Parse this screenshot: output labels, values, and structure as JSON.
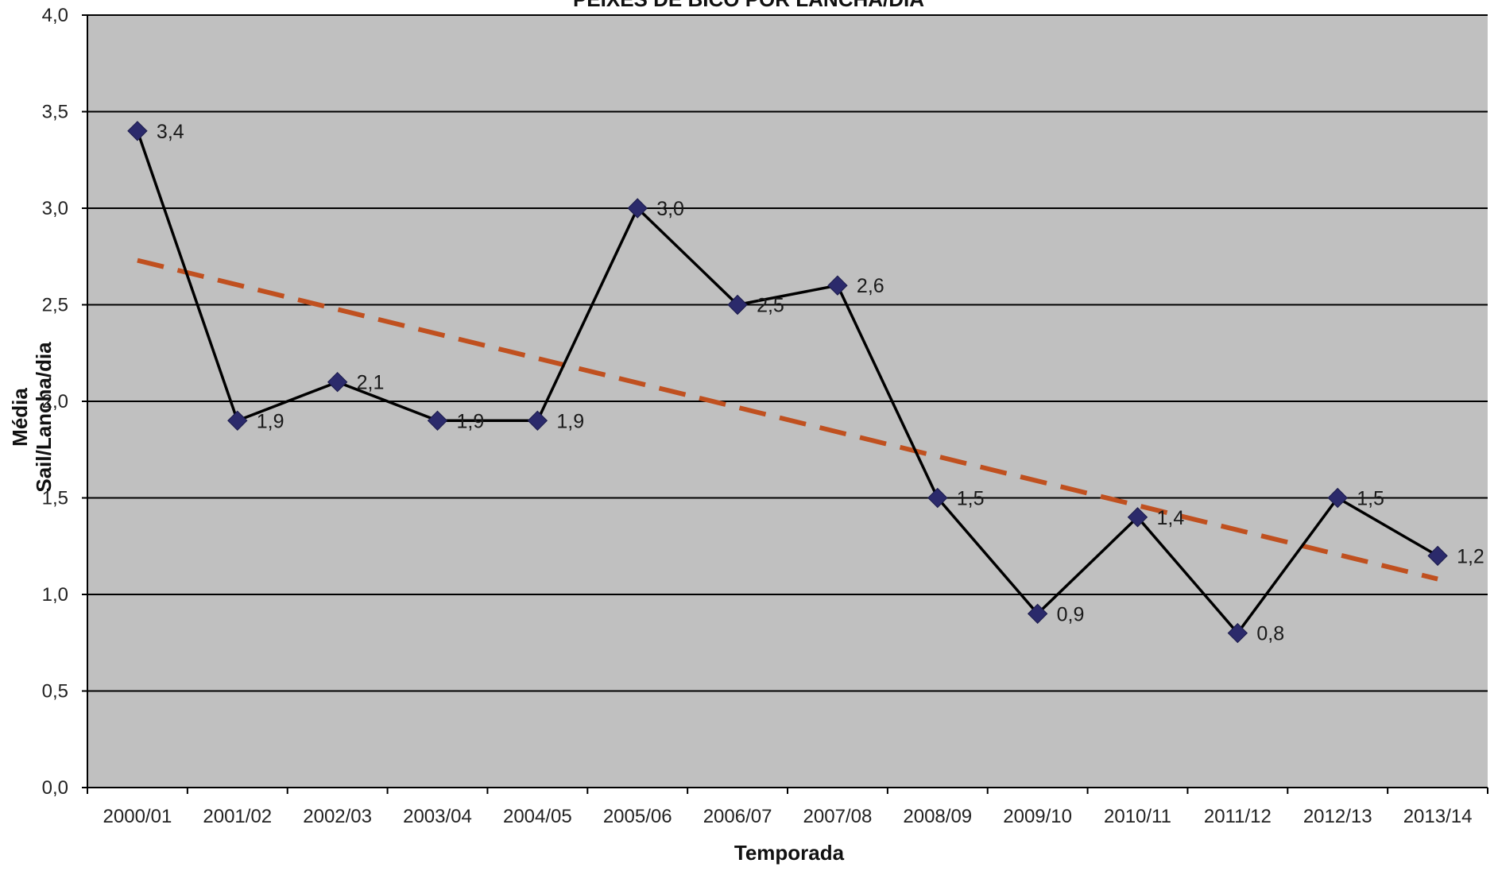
{
  "chart_data": {
    "type": "line",
    "title": "PEIXES  DE  BICO  POR  LANCHA/DIA",
    "xlabel": "Temporada",
    "ylabel_lines": [
      "Média",
      "Sail/Lancha/dia"
    ],
    "categories": [
      "2000/01",
      "2001/02",
      "2002/03",
      "2003/04",
      "2004/05",
      "2005/06",
      "2006/07",
      "2007/08",
      "2008/09",
      "2009/10",
      "2010/11",
      "2011/12",
      "2012/13",
      "2013/14"
    ],
    "series": [
      {
        "values": [
          3.4,
          1.9,
          2.1,
          1.9,
          1.9,
          3.0,
          2.5,
          2.6,
          1.5,
          0.9,
          1.4,
          0.8,
          1.5,
          1.2
        ],
        "labels": [
          "3,4",
          "1,9",
          "2,1",
          "1,9",
          "1,9",
          "3,0",
          "2,5",
          "2,6",
          "1,5",
          "0,9",
          "1,4",
          "0,8",
          "1,5",
          "1,2"
        ],
        "color": "#000000",
        "marker": "diamond",
        "marker_color": "#2b2a6b"
      }
    ],
    "trendline": {
      "type": "linear",
      "start": 2.73,
      "end": 1.08,
      "color": "#c0501f",
      "style": "dashed"
    },
    "ylim": [
      0,
      4
    ],
    "yticks": [
      "0,0",
      "0,5",
      "1,0",
      "1,5",
      "2,0",
      "2,5",
      "3,0",
      "3,5",
      "4,0"
    ],
    "grid": true,
    "legend": "none",
    "colors": {
      "plot_background": "#c0c0c0",
      "gridline": "#000000",
      "axis": "#000000"
    }
  }
}
